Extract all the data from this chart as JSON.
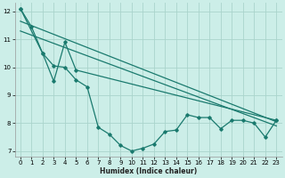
{
  "xlabel": "Humidex (Indice chaleur)",
  "background_color": "#cceee8",
  "grid_color": "#aad4cc",
  "line_color": "#1a7a6e",
  "xlim": [
    -0.5,
    23.5
  ],
  "ylim": [
    6.8,
    12.3
  ],
  "yticks": [
    7,
    8,
    9,
    10,
    11,
    12
  ],
  "xticks": [
    0,
    1,
    2,
    3,
    4,
    5,
    6,
    7,
    8,
    9,
    10,
    11,
    12,
    13,
    14,
    15,
    16,
    17,
    18,
    19,
    20,
    21,
    22,
    23
  ],
  "series1_x": [
    0,
    1,
    2,
    3,
    4,
    5,
    6,
    7,
    8,
    9,
    10,
    11,
    12,
    13,
    14,
    15,
    16,
    17,
    18,
    19,
    20,
    21,
    22,
    23
  ],
  "series1_y": [
    12.1,
    11.45,
    10.5,
    10.05,
    10.0,
    9.55,
    9.3,
    7.85,
    7.6,
    7.2,
    7.0,
    7.1,
    7.25,
    7.7,
    7.75,
    8.3,
    8.2,
    8.2,
    7.8,
    8.1,
    8.1,
    8.0,
    7.5,
    8.1
  ],
  "series2_x": [
    0,
    2,
    3,
    4,
    5,
    23
  ],
  "series2_y": [
    12.1,
    10.5,
    9.5,
    10.9,
    9.9,
    8.1
  ],
  "series3_x": [
    0,
    23
  ],
  "series3_y": [
    11.65,
    8.05
  ],
  "series4_x": [
    0,
    23
  ],
  "series4_y": [
    11.3,
    7.9
  ]
}
